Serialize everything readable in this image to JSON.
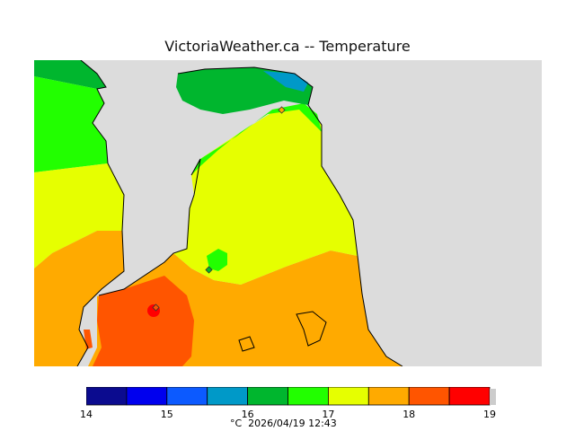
{
  "title": "VictoriaWeather.ca -- Temperature",
  "footer": "°C  2026/04/19 12:43",
  "colorbar": {
    "min": 14,
    "max": 19,
    "tick_labels": [
      "14",
      "15",
      "16",
      "17",
      "18",
      "19"
    ],
    "bins": [
      {
        "from": 14.0,
        "to": 14.5,
        "color": "#0b0b8f"
      },
      {
        "from": 14.5,
        "to": 15.0,
        "color": "#0000ee"
      },
      {
        "from": 15.0,
        "to": 15.5,
        "color": "#0c5aff"
      },
      {
        "from": 15.5,
        "to": 16.0,
        "color": "#0099c8"
      },
      {
        "from": 16.0,
        "to": 16.5,
        "color": "#00b62e"
      },
      {
        "from": 16.5,
        "to": 17.0,
        "color": "#22ff00"
      },
      {
        "from": 17.0,
        "to": 17.5,
        "color": "#e6ff00"
      },
      {
        "from": 17.5,
        "to": 18.0,
        "color": "#ffaa00"
      },
      {
        "from": 18.0,
        "to": 18.5,
        "color": "#ff5500"
      },
      {
        "from": 18.5,
        "to": 19.0,
        "color": "#ff0000"
      }
    ]
  },
  "map": {
    "land_color": "#dcdcdc",
    "station_markers": [
      "station-marker",
      "station-marker",
      "station-marker"
    ]
  }
}
